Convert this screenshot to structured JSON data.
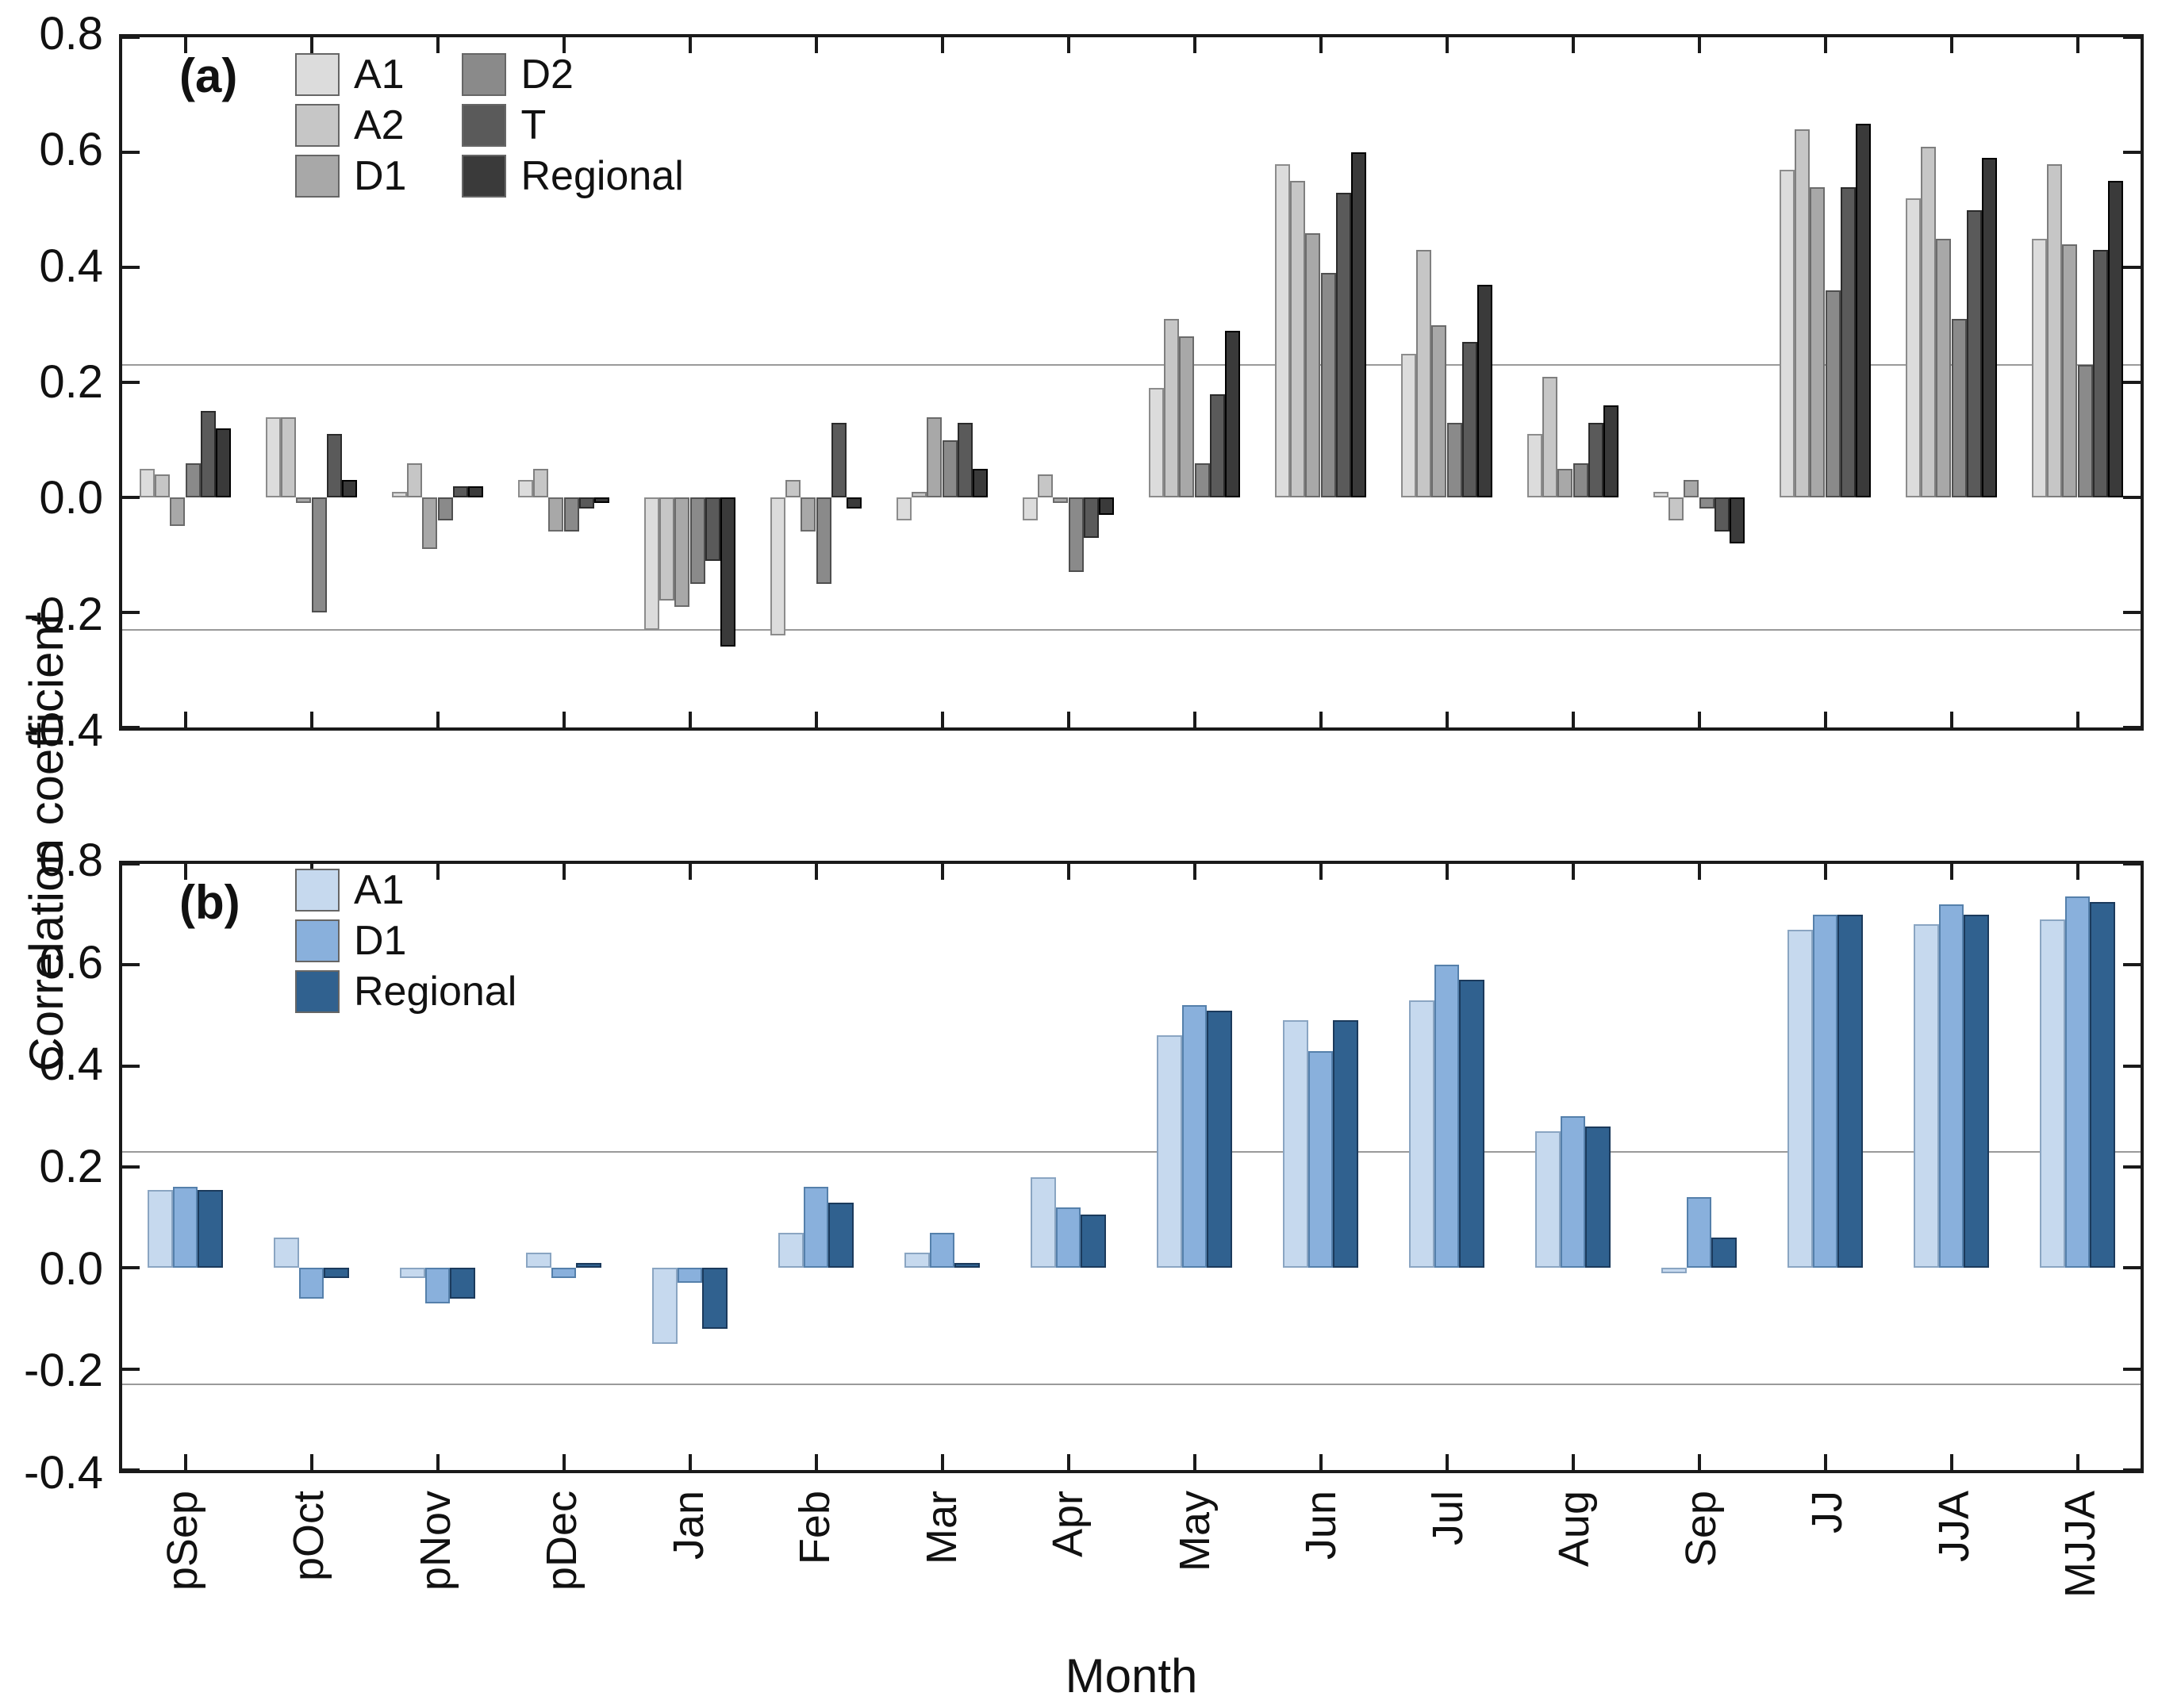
{
  "figure": {
    "y_axis_title": "Correlation coefficient",
    "x_axis_title": "Month",
    "y_tick_labels": [
      "0.8",
      "0.6",
      "0.4",
      "0.2",
      "0.0",
      "-0.2",
      "-0.4"
    ],
    "frame_color": "#1a1a1a",
    "significance_line_color": "#9a9a9a",
    "significance_threshold": 0.23
  },
  "chart_data": [
    {
      "type": "bar",
      "panel_label": "(a)",
      "categories": [
        "pSep",
        "pOct",
        "pNov",
        "pDec",
        "Jan",
        "Feb",
        "Mar",
        "Apr",
        "May",
        "Jun",
        "Jul",
        "Aug",
        "Sep",
        "JJ",
        "JJA",
        "MJJA"
      ],
      "ylim": [
        -0.4,
        0.8
      ],
      "y_ticks": [
        0.8,
        0.6,
        0.4,
        0.2,
        0.0,
        -0.2,
        -0.4
      ],
      "reference_lines": [
        0.23,
        -0.23
      ],
      "grid": false,
      "legend_position": "top-left two columns",
      "group_fraction": 0.72,
      "series": [
        {
          "name": "A1",
          "fill": "#dcdcdc",
          "edge": "#8c8c8c",
          "values": [
            0.05,
            0.14,
            0.01,
            0.03,
            -0.23,
            -0.24,
            -0.04,
            -0.04,
            0.19,
            0.58,
            0.25,
            0.11,
            0.01,
            0.57,
            0.52,
            0.45
          ]
        },
        {
          "name": "A2",
          "fill": "#c6c6c6",
          "edge": "#7f7f7f",
          "values": [
            0.04,
            0.14,
            0.06,
            0.05,
            -0.18,
            0.03,
            0.01,
            0.04,
            0.31,
            0.55,
            0.43,
            0.21,
            -0.04,
            0.64,
            0.61,
            0.58
          ]
        },
        {
          "name": "D1",
          "fill": "#a8a8a8",
          "edge": "#6b6b6b",
          "values": [
            -0.05,
            -0.01,
            -0.09,
            -0.06,
            -0.19,
            -0.06,
            0.14,
            -0.01,
            0.28,
            0.46,
            0.3,
            0.05,
            0.03,
            0.54,
            0.45,
            0.44
          ]
        },
        {
          "name": "D2",
          "fill": "#8a8a8a",
          "edge": "#4f4f4f",
          "values": [
            0.06,
            -0.2,
            -0.04,
            -0.06,
            -0.15,
            -0.15,
            0.1,
            -0.13,
            0.06,
            0.39,
            0.13,
            0.06,
            -0.02,
            0.36,
            0.31,
            0.23
          ]
        },
        {
          "name": "T",
          "fill": "#5a5a5a",
          "edge": "#2b2b2b",
          "values": [
            0.15,
            0.11,
            0.02,
            -0.02,
            -0.11,
            0.13,
            0.13,
            -0.07,
            0.18,
            0.53,
            0.27,
            0.13,
            -0.06,
            0.54,
            0.5,
            0.43
          ]
        },
        {
          "name": "Regional",
          "fill": "#3a3a3a",
          "edge": "#000000",
          "values": [
            0.12,
            0.03,
            0.02,
            -0.01,
            -0.26,
            -0.02,
            0.05,
            -0.03,
            0.29,
            0.6,
            0.37,
            0.16,
            -0.08,
            0.65,
            0.59,
            0.55
          ]
        }
      ]
    },
    {
      "type": "bar",
      "panel_label": "(b)",
      "categories": [
        "pSep",
        "pOct",
        "pNov",
        "pDec",
        "Jan",
        "Feb",
        "Mar",
        "Apr",
        "May",
        "Jun",
        "Jul",
        "Aug",
        "Sep",
        "JJ",
        "JJA",
        "MJJA"
      ],
      "ylim": [
        -0.4,
        0.8
      ],
      "y_ticks": [
        0.8,
        0.6,
        0.4,
        0.2,
        0.0,
        -0.2,
        -0.4
      ],
      "reference_lines": [
        0.23,
        -0.23
      ],
      "grid": false,
      "legend_position": "top-left single column",
      "group_fraction": 0.6,
      "series": [
        {
          "name": "A1",
          "fill": "#c6d9ee",
          "edge": "#8aa5c2",
          "values": [
            0.155,
            0.06,
            -0.02,
            0.03,
            -0.15,
            0.07,
            0.03,
            0.18,
            0.46,
            0.49,
            0.53,
            0.27,
            -0.01,
            0.67,
            0.68,
            0.69
          ]
        },
        {
          "name": "D1",
          "fill": "#89b0dc",
          "edge": "#5580ab",
          "values": [
            0.16,
            -0.06,
            -0.07,
            -0.02,
            -0.03,
            0.16,
            0.07,
            0.12,
            0.52,
            0.43,
            0.6,
            0.3,
            0.14,
            0.7,
            0.72,
            0.735
          ]
        },
        {
          "name": "Regional",
          "fill": "#30618f",
          "edge": "#1b3a5c",
          "values": [
            0.155,
            -0.02,
            -0.06,
            0.01,
            -0.12,
            0.13,
            0.01,
            0.105,
            0.51,
            0.49,
            0.57,
            0.28,
            0.06,
            0.7,
            0.7,
            0.725
          ]
        }
      ]
    }
  ]
}
